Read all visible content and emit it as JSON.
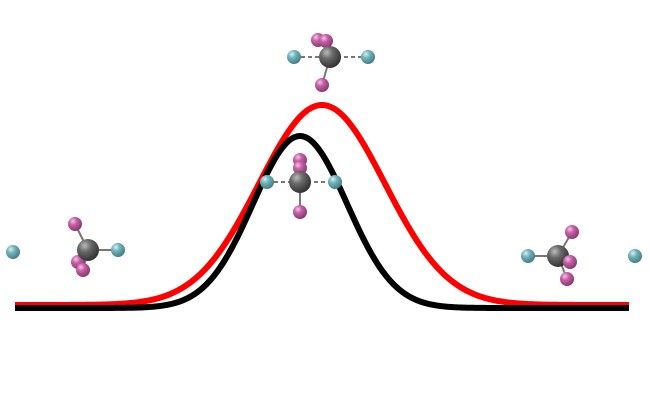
{
  "diagram": {
    "curves": [
      {
        "name": "black-energy-profile",
        "color": "#000000"
      },
      {
        "name": "red-energy-profile",
        "color": "#ff0000"
      }
    ],
    "atom_colors": {
      "carbon": "#5a5a5a",
      "pink_halogen": "#c65fa8",
      "cyan_halogen": "#72b3bb"
    },
    "structures": [
      "reactant",
      "transition-state-red",
      "transition-state-black",
      "product"
    ]
  }
}
